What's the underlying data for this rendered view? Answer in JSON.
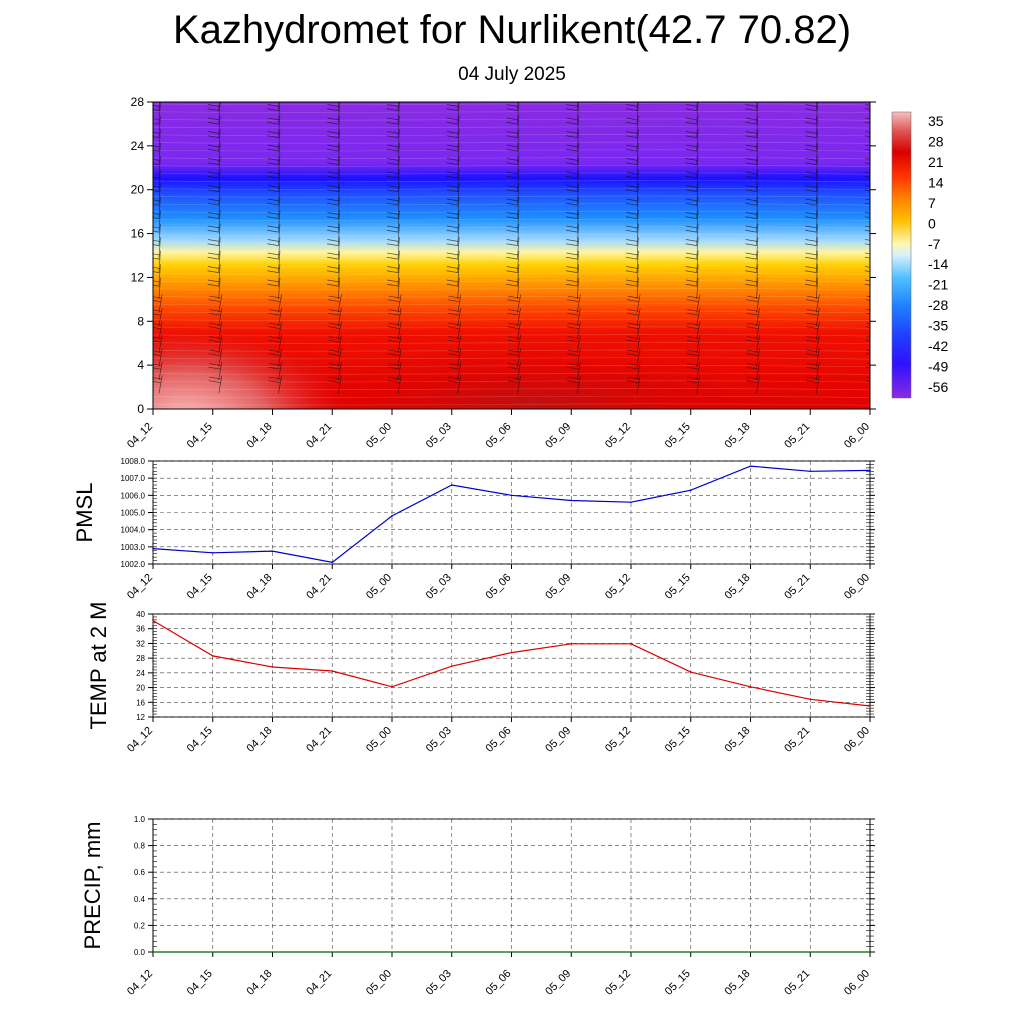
{
  "header": {
    "title": "Kazhydromet for Nurlikent(42.7 70.82)",
    "subtitle": "04 July 2025"
  },
  "chart_data": [
    {
      "type": "heatmap",
      "name": "temperature-profile",
      "ylabel": "",
      "yticks": [
        0,
        4,
        8,
        12,
        16,
        20,
        24,
        28
      ],
      "ylim": [
        0,
        28
      ],
      "xticks": [
        "04_12",
        "04_15",
        "04_18",
        "04_21",
        "05_00",
        "05_03",
        "05_06",
        "05_09",
        "05_12",
        "05_15",
        "05_18",
        "05_21",
        "06_00"
      ],
      "colorbar_labels": [
        "35",
        "28",
        "21",
        "14",
        "7",
        "0",
        "-7",
        "-14",
        "-21",
        "-28",
        "-35",
        "-42",
        "-49",
        "-56"
      ],
      "legend": "right",
      "wind_barbs": true,
      "colors": [
        "#7a1fa2",
        "#8a2be2",
        "#2000ff",
        "#1e50ff",
        "#1e90ff",
        "#87cefa",
        "#fffacd",
        "#ffd700",
        "#ff8c00",
        "#ff4500",
        "#e00000",
        "#c00000",
        "#e06060",
        "#f4b0b0"
      ]
    },
    {
      "type": "line",
      "name": "pmsl",
      "ylabel": "PMSL",
      "ylim": [
        1002.0,
        1008.0
      ],
      "yticks": [
        "1002.0",
        "1003.0",
        "1004.0",
        "1005.0",
        "1006.0",
        "1007.0",
        "1008.0"
      ],
      "categories": [
        "04_12",
        "04_15",
        "04_18",
        "04_21",
        "05_00",
        "05_03",
        "05_06",
        "05_09",
        "05_12",
        "05_15",
        "05_18",
        "05_21",
        "06_00"
      ],
      "values": [
        1002.9,
        1002.65,
        1002.75,
        1002.1,
        1004.8,
        1006.6,
        1006.0,
        1005.7,
        1005.6,
        1006.3,
        1007.7,
        1007.4,
        1007.45
      ],
      "color": "#0000cc",
      "grid": true
    },
    {
      "type": "line",
      "name": "temp-2m",
      "ylabel": "TEMP at 2 M",
      "ylim": [
        12,
        40
      ],
      "yticks": [
        "12",
        "16",
        "20",
        "24",
        "28",
        "32",
        "36",
        "40"
      ],
      "categories": [
        "04_12",
        "04_15",
        "04_18",
        "04_21",
        "05_00",
        "05_03",
        "05_06",
        "05_09",
        "05_12",
        "05_15",
        "05_18",
        "05_21",
        "06_00"
      ],
      "values": [
        38.2,
        28.6,
        25.6,
        24.5,
        20.2,
        25.8,
        29.5,
        31.9,
        31.9,
        24.2,
        20.2,
        16.8,
        15.0
      ],
      "color": "#dd0000",
      "grid": true
    },
    {
      "type": "line",
      "name": "precip",
      "ylabel": "PRECIP, mm",
      "ylim": [
        0.0,
        1.0
      ],
      "yticks": [
        "0.0",
        "0.2",
        "0.4",
        "0.6",
        "0.8",
        "1.0"
      ],
      "categories": [
        "04_12",
        "04_15",
        "04_18",
        "04_21",
        "05_00",
        "05_03",
        "05_06",
        "05_09",
        "05_12",
        "05_15",
        "05_18",
        "05_21",
        "06_00"
      ],
      "values": [
        0,
        0,
        0,
        0,
        0,
        0,
        0,
        0,
        0,
        0,
        0,
        0,
        0
      ],
      "color": "#006400",
      "grid": true
    }
  ]
}
